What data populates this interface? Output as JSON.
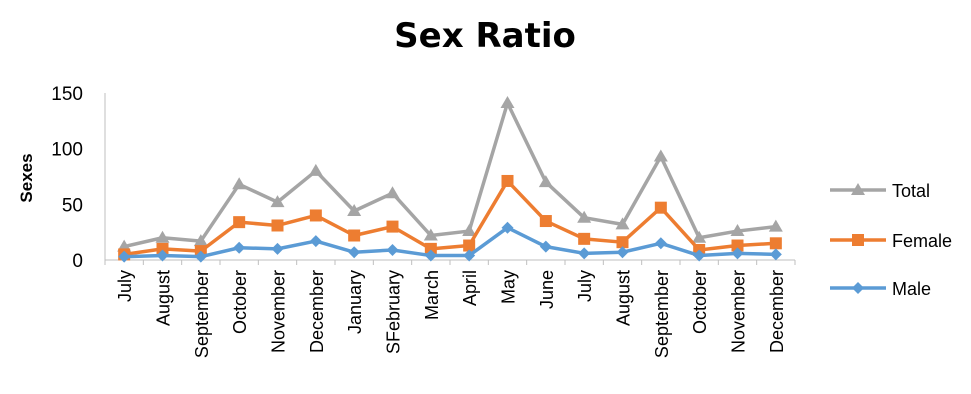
{
  "chart_data": {
    "type": "line",
    "title": "Sex Ratio",
    "xlabel": "",
    "ylabel": "Sexes",
    "categories": [
      "July",
      "August",
      "September",
      "October",
      "November",
      "December",
      "January",
      "SFebruary",
      "March",
      "April",
      "May",
      "June",
      "July",
      "August",
      "September",
      "October",
      "November",
      "December"
    ],
    "ylim": [
      0,
      150
    ],
    "yticks": [
      0,
      50,
      100,
      150
    ],
    "grid": false,
    "legend": "right",
    "series": [
      {
        "name": "Total",
        "color": "#A5A5A5",
        "marker": "triangle",
        "values": [
          12,
          20,
          17,
          68,
          52,
          80,
          44,
          60,
          22,
          26,
          141,
          70,
          38,
          32,
          93,
          20,
          26,
          30
        ]
      },
      {
        "name": "Female",
        "color": "#ED7D31",
        "marker": "square",
        "values": [
          5,
          10,
          8,
          34,
          31,
          40,
          22,
          30,
          10,
          13,
          71,
          35,
          19,
          16,
          47,
          9,
          13,
          15
        ]
      },
      {
        "name": "Male",
        "color": "#5B9BD5",
        "marker": "diamond",
        "values": [
          3,
          4,
          3,
          11,
          10,
          17,
          7,
          9,
          4,
          4,
          29,
          12,
          6,
          7,
          15,
          4,
          6,
          5
        ]
      }
    ]
  }
}
